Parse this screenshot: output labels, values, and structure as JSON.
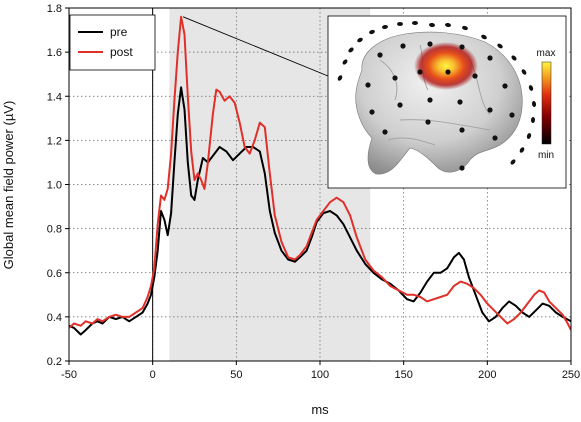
{
  "chart_data": {
    "type": "line",
    "title": "",
    "xlabel": "ms",
    "ylabel": "Global mean field power (µV)",
    "xlim": [
      -50,
      250
    ],
    "ylim": [
      0.2,
      1.8
    ],
    "x_ticks": [
      -50,
      0,
      50,
      100,
      150,
      200,
      250
    ],
    "y_ticks": [
      0.2,
      0.4,
      0.6,
      0.8,
      1.0,
      1.2,
      1.4,
      1.6,
      1.8
    ],
    "x_tick_labels": [
      "-50",
      "0",
      "50",
      "100",
      "150",
      "200",
      "250"
    ],
    "y_tick_labels": [
      "0.2",
      "0.4",
      "0.6",
      "0.8",
      "1.0",
      "1.2",
      "1.4",
      "1.6",
      "1.8"
    ],
    "grid": "dotted",
    "legend": "top-left",
    "stimulus_marker_x": 0,
    "shaded_window": [
      10,
      130
    ],
    "series": [
      {
        "name": "pre",
        "color": "#000000",
        "points": [
          [
            -50,
            0.36
          ],
          [
            -47,
            0.35
          ],
          [
            -43,
            0.32
          ],
          [
            -40,
            0.34
          ],
          [
            -36,
            0.37
          ],
          [
            -33,
            0.38
          ],
          [
            -30,
            0.37
          ],
          [
            -26,
            0.4
          ],
          [
            -22,
            0.39
          ],
          [
            -18,
            0.4
          ],
          [
            -14,
            0.38
          ],
          [
            -10,
            0.4
          ],
          [
            -6,
            0.42
          ],
          [
            -3,
            0.46
          ],
          [
            -1,
            0.5
          ],
          [
            1,
            0.58
          ],
          [
            3,
            0.7
          ],
          [
            5,
            0.88
          ],
          [
            7,
            0.84
          ],
          [
            9,
            0.77
          ],
          [
            11,
            0.87
          ],
          [
            13,
            1.1
          ],
          [
            15,
            1.32
          ],
          [
            17,
            1.44
          ],
          [
            19,
            1.34
          ],
          [
            21,
            1.1
          ],
          [
            23,
            0.95
          ],
          [
            25,
            0.93
          ],
          [
            27,
            1.02
          ],
          [
            30,
            1.12
          ],
          [
            33,
            1.1
          ],
          [
            36,
            1.13
          ],
          [
            40,
            1.17
          ],
          [
            44,
            1.15
          ],
          [
            48,
            1.11
          ],
          [
            52,
            1.14
          ],
          [
            56,
            1.17
          ],
          [
            60,
            1.17
          ],
          [
            64,
            1.15
          ],
          [
            67,
            1.05
          ],
          [
            70,
            0.88
          ],
          [
            73,
            0.78
          ],
          [
            77,
            0.7
          ],
          [
            81,
            0.66
          ],
          [
            85,
            0.65
          ],
          [
            88,
            0.67
          ],
          [
            92,
            0.7
          ],
          [
            95,
            0.76
          ],
          [
            98,
            0.83
          ],
          [
            102,
            0.87
          ],
          [
            106,
            0.88
          ],
          [
            110,
            0.86
          ],
          [
            114,
            0.82
          ],
          [
            118,
            0.76
          ],
          [
            122,
            0.7
          ],
          [
            127,
            0.64
          ],
          [
            132,
            0.6
          ],
          [
            137,
            0.57
          ],
          [
            142,
            0.55
          ],
          [
            147,
            0.52
          ],
          [
            152,
            0.48
          ],
          [
            156,
            0.47
          ],
          [
            160,
            0.51
          ],
          [
            164,
            0.56
          ],
          [
            168,
            0.6
          ],
          [
            172,
            0.6
          ],
          [
            176,
            0.62
          ],
          [
            180,
            0.67
          ],
          [
            183,
            0.69
          ],
          [
            186,
            0.66
          ],
          [
            189,
            0.58
          ],
          [
            193,
            0.5
          ],
          [
            197,
            0.42
          ],
          [
            201,
            0.38
          ],
          [
            205,
            0.4
          ],
          [
            209,
            0.44
          ],
          [
            213,
            0.47
          ],
          [
            217,
            0.45
          ],
          [
            221,
            0.42
          ],
          [
            225,
            0.4
          ],
          [
            229,
            0.43
          ],
          [
            233,
            0.46
          ],
          [
            237,
            0.45
          ],
          [
            241,
            0.42
          ],
          [
            245,
            0.4
          ],
          [
            250,
            0.38
          ]
        ]
      },
      {
        "name": "post",
        "color": "#e0302a",
        "points": [
          [
            -50,
            0.35
          ],
          [
            -47,
            0.37
          ],
          [
            -43,
            0.36
          ],
          [
            -40,
            0.38
          ],
          [
            -36,
            0.37
          ],
          [
            -33,
            0.39
          ],
          [
            -30,
            0.38
          ],
          [
            -26,
            0.4
          ],
          [
            -22,
            0.41
          ],
          [
            -18,
            0.4
          ],
          [
            -14,
            0.4
          ],
          [
            -10,
            0.42
          ],
          [
            -6,
            0.44
          ],
          [
            -3,
            0.49
          ],
          [
            -1,
            0.54
          ],
          [
            1,
            0.62
          ],
          [
            3,
            0.82
          ],
          [
            5,
            0.95
          ],
          [
            7,
            0.93
          ],
          [
            9,
            0.98
          ],
          [
            11,
            1.14
          ],
          [
            13,
            1.38
          ],
          [
            15,
            1.6
          ],
          [
            17,
            1.76
          ],
          [
            19,
            1.68
          ],
          [
            21,
            1.4
          ],
          [
            23,
            1.15
          ],
          [
            25,
            1.02
          ],
          [
            27,
            1.05
          ],
          [
            29,
            1.02
          ],
          [
            31,
            0.98
          ],
          [
            33,
            1.1
          ],
          [
            36,
            1.32
          ],
          [
            38,
            1.43
          ],
          [
            40,
            1.42
          ],
          [
            43,
            1.38
          ],
          [
            46,
            1.4
          ],
          [
            49,
            1.37
          ],
          [
            52,
            1.28
          ],
          [
            55,
            1.17
          ],
          [
            58,
            1.14
          ],
          [
            61,
            1.2
          ],
          [
            64,
            1.28
          ],
          [
            67,
            1.26
          ],
          [
            70,
            1.05
          ],
          [
            73,
            0.86
          ],
          [
            77,
            0.74
          ],
          [
            81,
            0.67
          ],
          [
            85,
            0.66
          ],
          [
            88,
            0.68
          ],
          [
            92,
            0.72
          ],
          [
            95,
            0.78
          ],
          [
            98,
            0.84
          ],
          [
            102,
            0.88
          ],
          [
            106,
            0.92
          ],
          [
            110,
            0.94
          ],
          [
            114,
            0.92
          ],
          [
            118,
            0.86
          ],
          [
            122,
            0.76
          ],
          [
            127,
            0.66
          ],
          [
            132,
            0.61
          ],
          [
            137,
            0.58
          ],
          [
            142,
            0.54
          ],
          [
            147,
            0.52
          ],
          [
            152,
            0.5
          ],
          [
            156,
            0.5
          ],
          [
            160,
            0.49
          ],
          [
            164,
            0.47
          ],
          [
            168,
            0.48
          ],
          [
            172,
            0.49
          ],
          [
            176,
            0.5
          ],
          [
            180,
            0.54
          ],
          [
            184,
            0.56
          ],
          [
            188,
            0.55
          ],
          [
            192,
            0.53
          ],
          [
            196,
            0.5
          ],
          [
            200,
            0.46
          ],
          [
            204,
            0.43
          ],
          [
            208,
            0.4
          ],
          [
            212,
            0.37
          ],
          [
            216,
            0.39
          ],
          [
            220,
            0.42
          ],
          [
            224,
            0.46
          ],
          [
            228,
            0.5
          ],
          [
            231,
            0.52
          ],
          [
            234,
            0.51
          ],
          [
            237,
            0.47
          ],
          [
            241,
            0.44
          ],
          [
            245,
            0.41
          ],
          [
            248,
            0.37
          ],
          [
            250,
            0.34
          ]
        ]
      }
    ],
    "inset": {
      "colorbar_max": "max",
      "colorbar_min": "min"
    }
  },
  "colors": {
    "shade": "#e6e6e6",
    "grid": "#666666",
    "axis": "#000000"
  }
}
